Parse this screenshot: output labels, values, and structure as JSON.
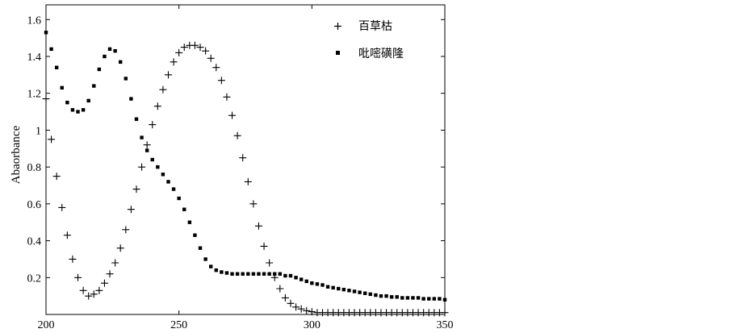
{
  "chart_data": {
    "type": "scatter",
    "title": "",
    "xlabel": "",
    "ylabel": "Abaorbance",
    "xlim": [
      200,
      350
    ],
    "ylim": [
      0,
      1.68
    ],
    "x_ticks": [
      200,
      250,
      300,
      350
    ],
    "y_ticks": [
      0.2,
      0.4,
      0.6,
      0.8,
      1,
      1.2,
      1.4,
      1.6
    ],
    "grid": false,
    "legend_position": "top-right",
    "series": [
      {
        "name": "百草枯",
        "marker": "plus",
        "x": [
          200,
          202,
          204,
          206,
          208,
          210,
          212,
          214,
          216,
          218,
          220,
          222,
          224,
          226,
          228,
          230,
          232,
          234,
          236,
          238,
          240,
          242,
          244,
          246,
          248,
          250,
          252,
          254,
          256,
          258,
          260,
          262,
          264,
          266,
          268,
          270,
          272,
          274,
          276,
          278,
          280,
          282,
          284,
          286,
          288,
          290,
          292,
          294,
          296,
          298,
          300,
          302,
          304,
          306,
          308,
          310,
          312,
          314,
          316,
          318,
          320,
          322,
          324,
          326,
          328,
          330,
          332,
          334,
          336,
          338,
          340,
          342,
          344,
          346,
          348,
          350
        ],
        "y": [
          1.17,
          0.95,
          0.75,
          0.58,
          0.43,
          0.3,
          0.2,
          0.13,
          0.1,
          0.11,
          0.13,
          0.17,
          0.22,
          0.28,
          0.36,
          0.46,
          0.57,
          0.68,
          0.8,
          0.92,
          1.03,
          1.13,
          1.22,
          1.3,
          1.37,
          1.42,
          1.45,
          1.46,
          1.46,
          1.45,
          1.43,
          1.39,
          1.34,
          1.27,
          1.18,
          1.08,
          0.97,
          0.85,
          0.72,
          0.6,
          0.48,
          0.37,
          0.28,
          0.2,
          0.14,
          0.09,
          0.06,
          0.04,
          0.03,
          0.02,
          0.015,
          0.01,
          0.01,
          0.01,
          0.01,
          0.01,
          0.01,
          0.01,
          0.01,
          0.01,
          0.01,
          0.01,
          0.01,
          0.01,
          0.01,
          0.01,
          0.01,
          0.01,
          0.01,
          0.01,
          0.01,
          0.01,
          0.01,
          0.01,
          0.01,
          0.01
        ]
      },
      {
        "name": "吡嘧磺隆",
        "marker": "square",
        "x": [
          200,
          202,
          204,
          206,
          208,
          210,
          212,
          214,
          216,
          218,
          220,
          222,
          224,
          226,
          228,
          230,
          232,
          234,
          236,
          238,
          240,
          242,
          244,
          246,
          248,
          250,
          252,
          254,
          256,
          258,
          260,
          262,
          264,
          266,
          268,
          270,
          272,
          274,
          276,
          278,
          280,
          282,
          284,
          286,
          288,
          290,
          292,
          294,
          296,
          298,
          300,
          302,
          304,
          306,
          308,
          310,
          312,
          314,
          316,
          318,
          320,
          322,
          324,
          326,
          328,
          330,
          332,
          334,
          336,
          338,
          340,
          342,
          344,
          346,
          348,
          350
        ],
        "y": [
          1.53,
          1.44,
          1.34,
          1.23,
          1.15,
          1.11,
          1.1,
          1.11,
          1.16,
          1.24,
          1.33,
          1.4,
          1.44,
          1.43,
          1.37,
          1.28,
          1.17,
          1.06,
          0.96,
          0.89,
          0.84,
          0.8,
          0.76,
          0.72,
          0.68,
          0.63,
          0.57,
          0.5,
          0.43,
          0.36,
          0.3,
          0.26,
          0.24,
          0.23,
          0.225,
          0.22,
          0.22,
          0.22,
          0.22,
          0.22,
          0.22,
          0.22,
          0.22,
          0.22,
          0.22,
          0.21,
          0.21,
          0.2,
          0.19,
          0.18,
          0.17,
          0.165,
          0.16,
          0.15,
          0.145,
          0.14,
          0.135,
          0.13,
          0.125,
          0.12,
          0.115,
          0.11,
          0.105,
          0.1,
          0.1,
          0.095,
          0.095,
          0.09,
          0.09,
          0.09,
          0.09,
          0.085,
          0.085,
          0.085,
          0.085,
          0.08
        ]
      }
    ]
  }
}
